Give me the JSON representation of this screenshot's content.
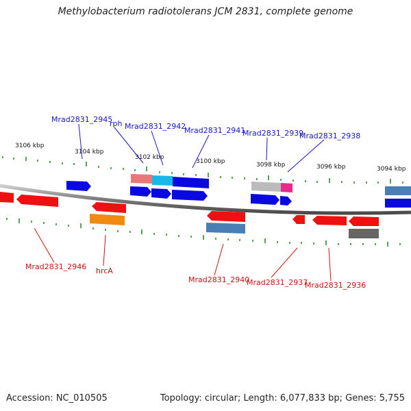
{
  "header": {
    "title": "Methylobacterium radiotolerans JCM 2831, complete genome"
  },
  "footer": {
    "accession": "Accession: NC_010505",
    "stats": "Topology: circular; Length: 6,077,833 bp; Genes: 5,755"
  },
  "colors": {
    "backbone": "#888888",
    "tick": "#2e8b2e",
    "forward_label": "#1515c8",
    "reverse_label": "#cc1111",
    "forward_gene": "#0a0ae0",
    "reverse_gene": "#ee1111",
    "rrna_pink": "#e87878",
    "cyan": "#1ab8e8",
    "grey": "#bbbbbb",
    "magenta": "#e8288a",
    "steelblue": "#4a7fb5",
    "orange": "#f08a10",
    "darkgrey": "#666666"
  },
  "ticks": [
    "3106 kbp",
    "3104 kbp",
    "3102 kbp",
    "3100 kbp",
    "3098 kbp",
    "3096 kbp",
    "3094 kbp"
  ],
  "labels_top": [
    "Mrad2831_2945",
    "rph",
    "Mrad2831_2942",
    "Mrad2831_2941",
    "Mrad2831_2939",
    "Mrad2831_2938"
  ],
  "labels_bottom": [
    "Mrad2831_2946",
    "hrcA",
    "Mrad2831_2940",
    "Mrad2831_2937",
    "Mrad2831_2936"
  ]
}
